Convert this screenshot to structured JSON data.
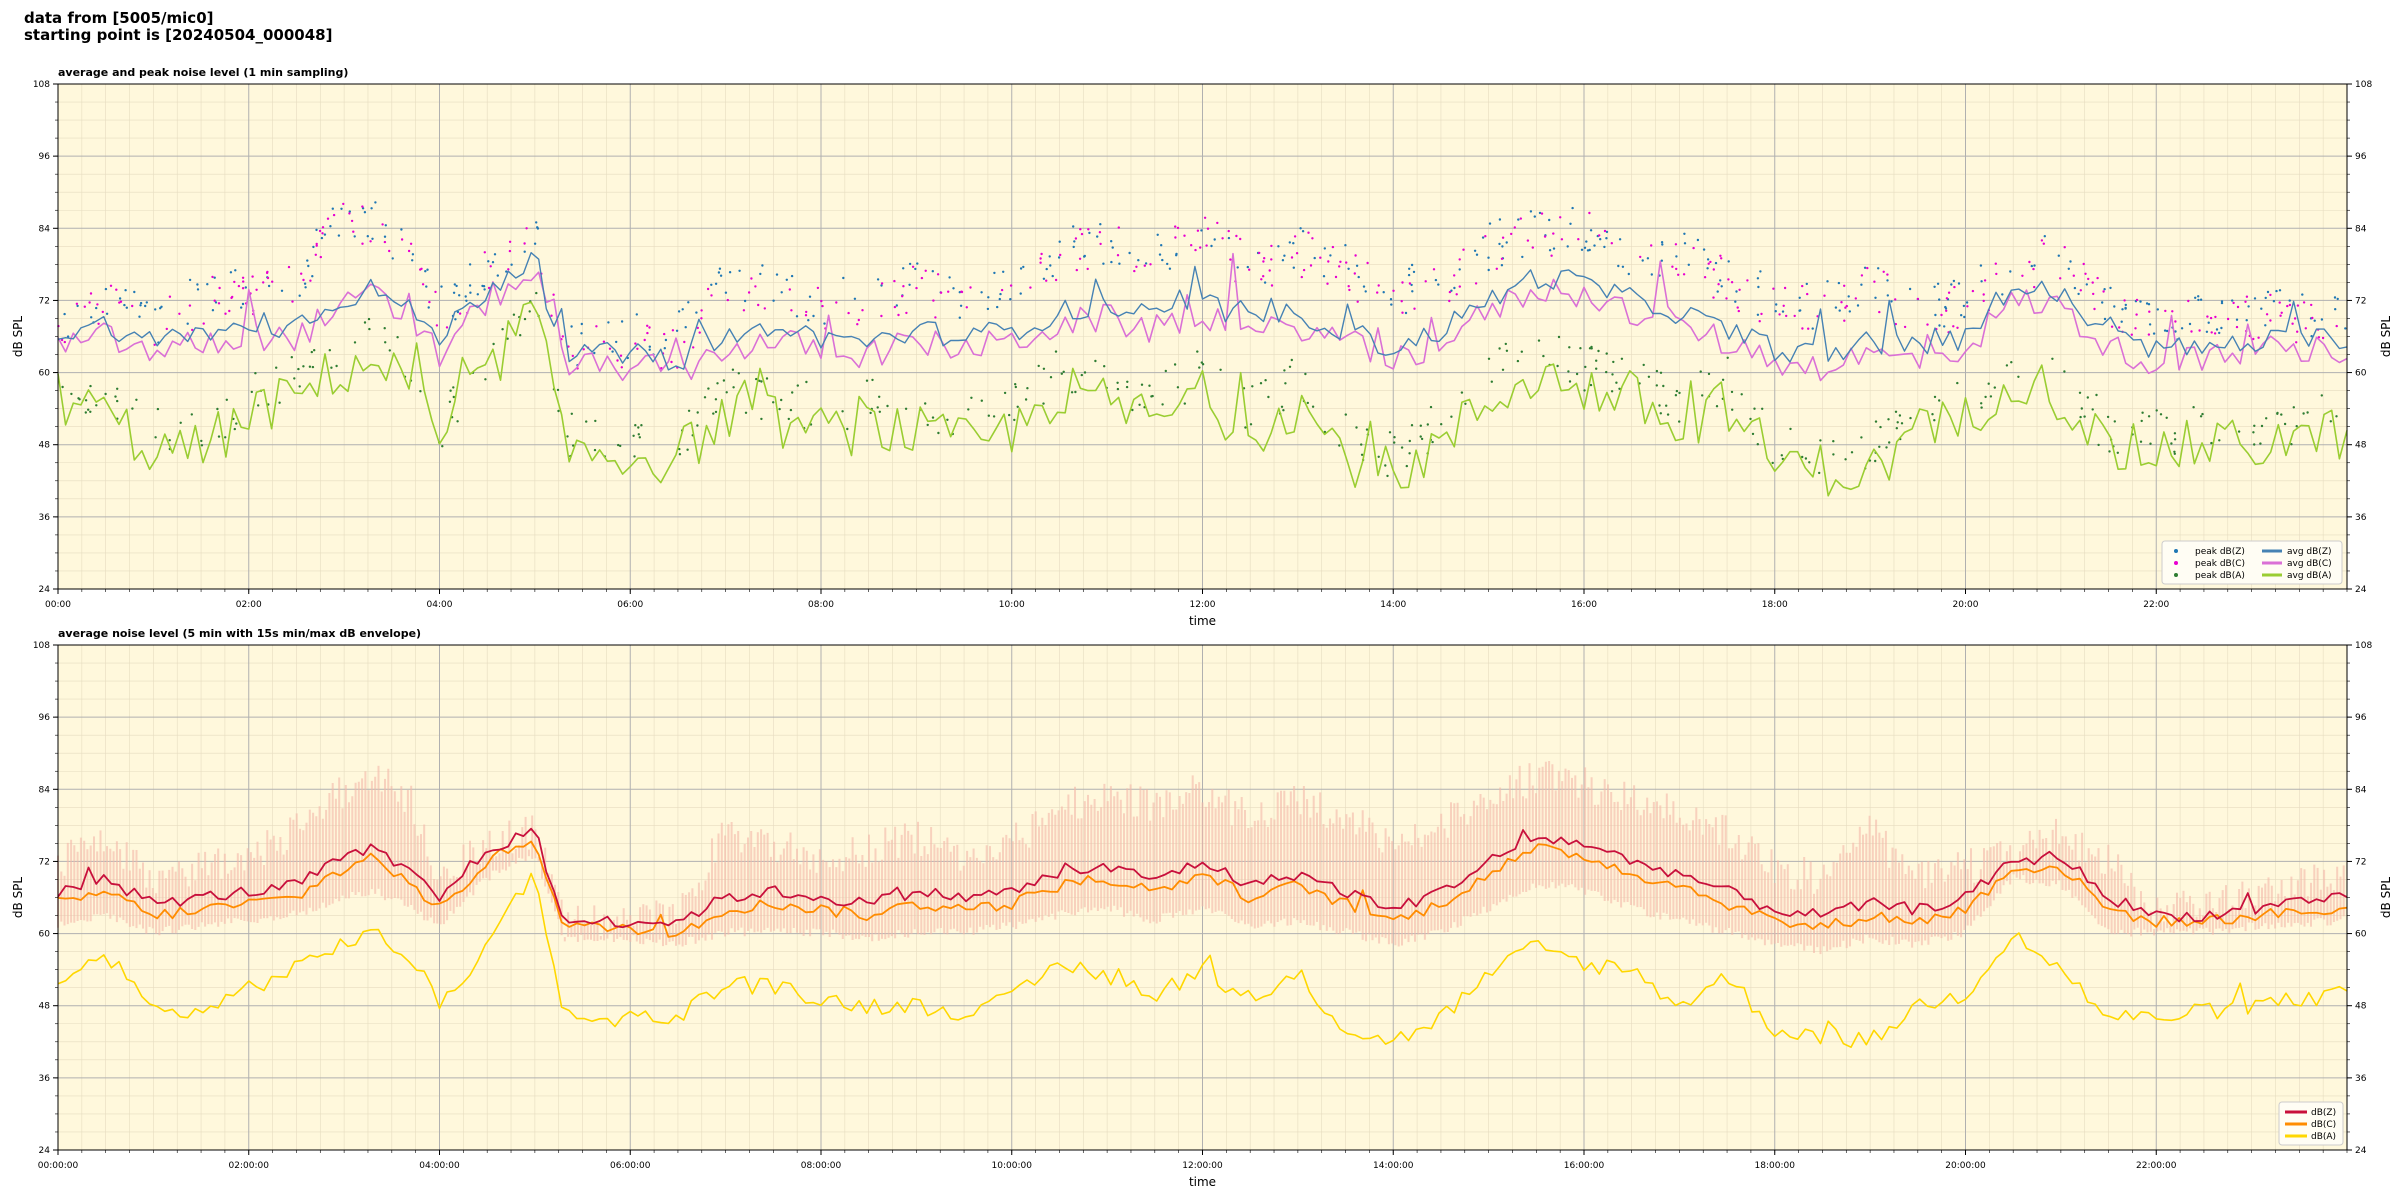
{
  "header": {
    "line1": "data from [5005/mic0]",
    "line2": "starting point is [20240504_000048]"
  },
  "colors": {
    "plot_bg": "#fff8dc",
    "peak_z": "#1f77b4",
    "peak_c": "#e800d0",
    "peak_a": "#2e7d32",
    "avg_z": "#4682b4",
    "avg_c": "#da70d6",
    "avg_a": "#9acd32",
    "z": "#c8103c",
    "c": "#ff8c00",
    "a": "#ffd700",
    "envelope": "#f4b8a8"
  },
  "chart_data": [
    {
      "type": "line",
      "title": "average and peak noise level (1 min sampling)",
      "xlabel": "time",
      "ylabel": "dB SPL",
      "ylim": [
        24,
        108
      ],
      "xlim_hours": [
        0,
        24
      ],
      "yticks": [
        24,
        36,
        48,
        60,
        72,
        84,
        96,
        108
      ],
      "xticks": [
        0,
        2,
        4,
        6,
        8,
        10,
        12,
        14,
        16,
        18,
        20,
        22
      ],
      "xtick_labels": [
        "00:00",
        "02:00",
        "04:00",
        "06:00",
        "08:00",
        "10:00",
        "12:00",
        "14:00",
        "16:00",
        "18:00",
        "20:00",
        "22:00"
      ],
      "grid": true,
      "legend_position": "bottom-right",
      "legend": [
        "peak dB(Z)",
        "peak dB(C)",
        "peak dB(A)",
        "avg dB(Z)",
        "avg dB(C)",
        "avg dB(A)"
      ],
      "x": [
        0,
        0.5,
        1,
        1.5,
        2,
        2.5,
        2.9,
        3.3,
        3.7,
        4,
        4.5,
        5,
        5.3,
        6,
        6.5,
        7,
        7.5,
        8,
        8.5,
        9,
        9.5,
        10,
        10.5,
        11,
        11.5,
        12,
        12.5,
        13,
        13.5,
        14,
        14.5,
        15,
        15.5,
        16,
        16.5,
        17,
        17.5,
        18,
        18.5,
        19,
        19.5,
        20,
        20.5,
        21,
        21.5,
        22,
        22.5,
        23,
        24
      ],
      "series": [
        {
          "name": "avg dB(Z)",
          "values": [
            66,
            68,
            65,
            67,
            67,
            68,
            72,
            74,
            70,
            66,
            74,
            79,
            63,
            63,
            62,
            66,
            67,
            66,
            65,
            67,
            66,
            67,
            70,
            71,
            69,
            72,
            68,
            70,
            67,
            64,
            67,
            72,
            76,
            75,
            72,
            70,
            67,
            64,
            63,
            65,
            64,
            66,
            74,
            73,
            66,
            64,
            64,
            65,
            66
          ]
        },
        {
          "name": "avg dB(C)",
          "values": [
            64,
            66,
            63,
            65,
            65,
            66,
            70,
            73,
            68,
            63,
            72,
            77,
            61,
            61,
            60,
            64,
            65,
            64,
            63,
            65,
            64,
            65,
            68,
            69,
            67,
            70,
            66,
            68,
            65,
            62,
            65,
            70,
            74,
            73,
            70,
            68,
            65,
            62,
            61,
            63,
            62,
            64,
            72,
            71,
            64,
            62,
            62,
            63,
            64
          ]
        },
        {
          "name": "avg dB(A)",
          "values": [
            56,
            53,
            47,
            47,
            53,
            56,
            60,
            62,
            58,
            48,
            60,
            71,
            47,
            46,
            46,
            53,
            52,
            50,
            51,
            50,
            48,
            50,
            57,
            55,
            52,
            56,
            50,
            55,
            46,
            43,
            48,
            55,
            60,
            57,
            56,
            50,
            55,
            45,
            44,
            43,
            50,
            52,
            60,
            56,
            47,
            47,
            48,
            48,
            50
          ]
        },
        {
          "name": "peak dB(Z)",
          "values": [
            69,
            73,
            68,
            73,
            74,
            76,
            85,
            86,
            80,
            70,
            78,
            82,
            65,
            66,
            66,
            75,
            74,
            72,
            73,
            75,
            72,
            74,
            80,
            82,
            80,
            84,
            78,
            81,
            78,
            73,
            76,
            81,
            84,
            84,
            80,
            80,
            76,
            72,
            71,
            76,
            70,
            72,
            78,
            80,
            72,
            68,
            70,
            70,
            70
          ]
        },
        {
          "name": "peak dB(C)",
          "values": [
            68,
            72,
            67,
            72,
            73,
            75,
            84,
            85,
            79,
            68,
            77,
            81,
            64,
            64,
            64,
            74,
            73,
            71,
            72,
            74,
            71,
            73,
            79,
            81,
            79,
            83,
            77,
            80,
            77,
            72,
            75,
            80,
            83,
            83,
            79,
            79,
            75,
            71,
            70,
            75,
            69,
            71,
            77,
            79,
            71,
            67,
            69,
            69,
            69
          ]
        },
        {
          "name": "peak dB(A)",
          "values": [
            58,
            56,
            50,
            50,
            56,
            59,
            64,
            66,
            62,
            51,
            63,
            72,
            50,
            49,
            49,
            57,
            56,
            54,
            55,
            54,
            52,
            54,
            61,
            59,
            56,
            60,
            54,
            59,
            50,
            46,
            52,
            59,
            64,
            61,
            60,
            54,
            59,
            48,
            47,
            47,
            54,
            56,
            62,
            59,
            50,
            50,
            51,
            51,
            53
          ]
        }
      ]
    },
    {
      "type": "line",
      "title": "average noise level (5 min with 15s min/max dB envelope)",
      "xlabel": "time",
      "ylabel": "dB SPL",
      "ylim": [
        24,
        108
      ],
      "xlim_hours": [
        0,
        24
      ],
      "yticks": [
        24,
        36,
        48,
        60,
        72,
        84,
        96,
        108
      ],
      "xticks": [
        0,
        2,
        4,
        6,
        8,
        10,
        12,
        14,
        16,
        18,
        20,
        22
      ],
      "xtick_labels": [
        "00:00:00",
        "02:00:00",
        "04:00:00",
        "06:00:00",
        "08:00:00",
        "10:00:00",
        "12:00:00",
        "14:00:00",
        "16:00:00",
        "18:00:00",
        "20:00:00",
        "22:00:00"
      ],
      "grid": true,
      "legend_position": "bottom-right",
      "legend": [
        "dB(Z)",
        "dB(C)",
        "dB(A)"
      ],
      "x": [
        0,
        0.5,
        1,
        1.5,
        2,
        2.5,
        2.9,
        3.3,
        3.7,
        4,
        4.5,
        5,
        5.3,
        6,
        6.5,
        7,
        7.5,
        8,
        8.5,
        9,
        9.5,
        10,
        10.5,
        11,
        11.5,
        12,
        12.5,
        13,
        13.5,
        14,
        14.5,
        15,
        15.5,
        16,
        16.5,
        17,
        17.5,
        18,
        18.5,
        19,
        19.5,
        20,
        20.5,
        21,
        21.5,
        22,
        22.5,
        23,
        24
      ],
      "series": [
        {
          "name": "dB(Z)",
          "values": [
            67,
            69,
            65,
            66,
            67,
            68,
            72,
            74,
            70,
            66,
            74,
            77,
            62,
            62,
            62,
            66,
            67,
            66,
            65,
            67,
            66,
            67,
            70,
            71,
            69,
            72,
            68,
            70,
            67,
            64,
            67,
            72,
            76,
            75,
            72,
            70,
            67,
            64,
            63,
            65,
            64,
            66,
            72,
            73,
            66,
            63,
            63,
            64,
            66
          ]
        },
        {
          "name": "dB(C)",
          "values": [
            65,
            67,
            63,
            64,
            65,
            66,
            70,
            73,
            68,
            64,
            72,
            76,
            61,
            61,
            60,
            64,
            65,
            64,
            63,
            65,
            64,
            65,
            68,
            69,
            67,
            70,
            66,
            68,
            65,
            62,
            65,
            70,
            74,
            73,
            70,
            68,
            65,
            62,
            61,
            63,
            62,
            64,
            71,
            71,
            64,
            62,
            62,
            63,
            64
          ]
        },
        {
          "name": "dB(A)",
          "values": [
            51,
            57,
            47,
            47,
            51,
            54,
            58,
            60,
            56,
            48,
            58,
            71,
            46,
            46,
            46,
            52,
            51,
            49,
            48,
            48,
            47,
            49,
            55,
            53,
            50,
            54,
            48,
            53,
            44,
            42,
            46,
            53,
            58,
            55,
            54,
            48,
            53,
            44,
            43,
            42,
            48,
            50,
            60,
            54,
            46,
            46,
            47,
            48,
            50
          ]
        },
        {
          "name": "min/max envelope",
          "values_min": [
            62,
            64,
            61,
            62,
            63,
            64,
            66,
            68,
            65,
            62,
            70,
            74,
            60,
            60,
            59,
            61,
            61,
            61,
            60,
            61,
            61,
            62,
            64,
            65,
            63,
            65,
            62,
            63,
            61,
            59,
            61,
            65,
            69,
            68,
            65,
            63,
            61,
            59,
            58,
            60,
            59,
            61,
            70,
            69,
            61,
            61,
            61,
            62,
            63
          ],
          "values_max": [
            75,
            78,
            72,
            74,
            76,
            80,
            86,
            90,
            85,
            72,
            78,
            80,
            65,
            65,
            66,
            80,
            78,
            75,
            77,
            79,
            76,
            78,
            84,
            86,
            84,
            87,
            82,
            85,
            82,
            78,
            81,
            86,
            89,
            88,
            85,
            84,
            80,
            74,
            72,
            80,
            72,
            74,
            76,
            80,
            75,
            66,
            68,
            70,
            73
          ]
        }
      ]
    }
  ]
}
